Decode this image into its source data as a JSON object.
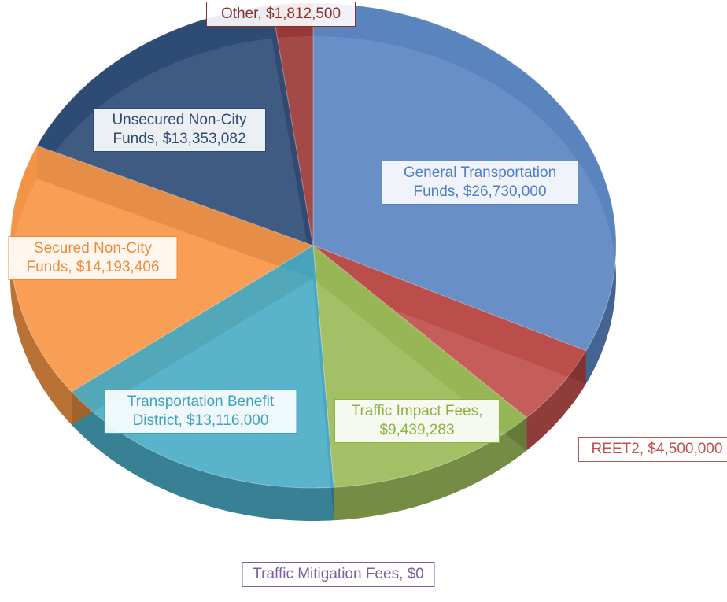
{
  "chart_data": {
    "type": "pie3d",
    "values": [
      26730000,
      4500000,
      9439283,
      0,
      13116000,
      14193406,
      13353082,
      1812500
    ],
    "value_labels": [
      "General Transportation Funds, $26,730,000",
      "REET2, $4,500,000",
      "Traffic Impact Fees, $9,439,283",
      "Traffic Mitigation Fees, $0",
      "Transportation Benefit District, $13,116,000",
      "Secured Non-City Funds, $14,193,406",
      "Unsecured Non-City Funds, $13,353,082",
      "Other, $1,812,500"
    ],
    "colors": [
      "#5b87c2",
      "#c0504d",
      "#9bbb59",
      "#8064a2",
      "#4bacc6",
      "#f79646",
      "#2f4d77",
      "#9b3a38"
    ],
    "label_colors": [
      "#4f7fc0",
      "#c0504d",
      "#8db33f",
      "#7b5fa6",
      "#3fa3bf",
      "#f08a3a",
      "#2e4a72",
      "#8b2f2d"
    ]
  }
}
